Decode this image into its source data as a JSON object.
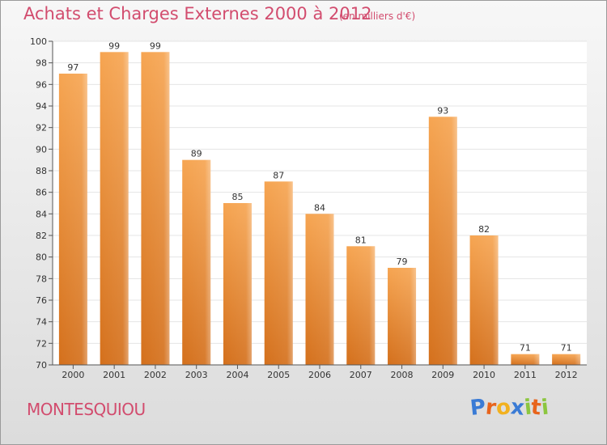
{
  "header": {
    "title": "Achats et Charges Externes 2000 à 2012",
    "unit": "(en milliers d'€)"
  },
  "footer": {
    "commune": "MONTESQUIOU",
    "logo_letters": [
      "P",
      "r",
      "o",
      "x",
      "i",
      "t",
      "i"
    ],
    "logo_colors": [
      "#3a7bd5",
      "#e8641c",
      "#f2b11f",
      "#3a7bd5",
      "#8cc63f",
      "#e8641c",
      "#8cc63f"
    ]
  },
  "colors": {
    "bar_light": "#f6a552",
    "bar_dark": "#d4701c",
    "title": "#d24c6e"
  },
  "chart_data": {
    "type": "bar",
    "categories": [
      "2000",
      "2001",
      "2002",
      "2003",
      "2004",
      "2005",
      "2006",
      "2007",
      "2008",
      "2009",
      "2010",
      "2011",
      "2012"
    ],
    "values": [
      97,
      99,
      99,
      89,
      85,
      87,
      84,
      81,
      79,
      93,
      82,
      71,
      71
    ],
    "ylim": [
      70,
      100
    ],
    "yticks": [
      70,
      72,
      74,
      76,
      78,
      80,
      82,
      84,
      86,
      88,
      90,
      92,
      94,
      96,
      98,
      100
    ],
    "grid": true
  }
}
